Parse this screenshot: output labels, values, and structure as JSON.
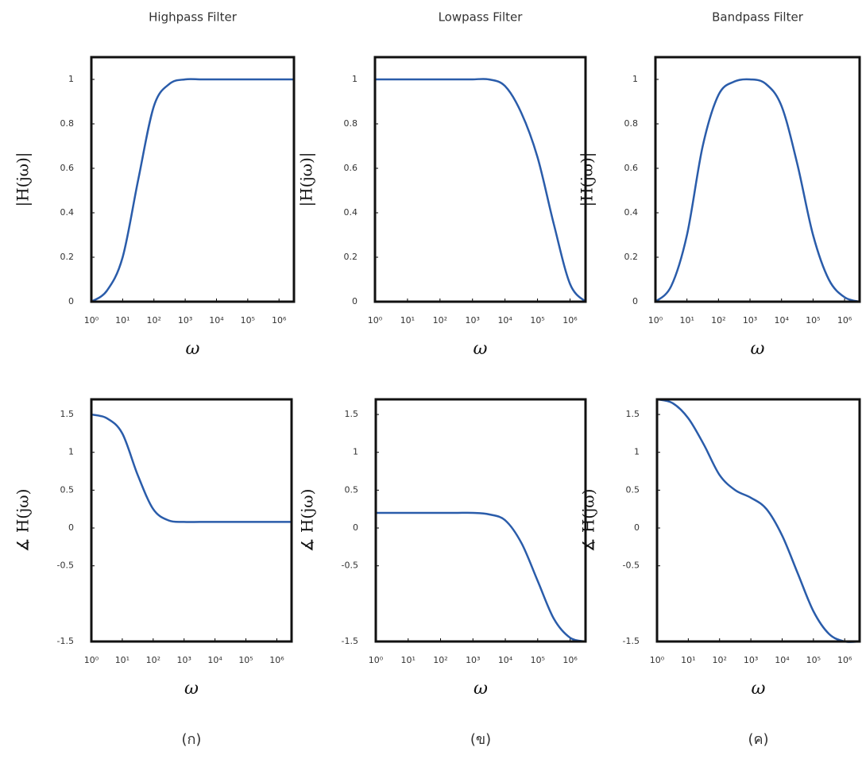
{
  "chart_data": [
    {
      "type": "line",
      "title": "Highpass Filter",
      "ylabel": "|H(jω)|",
      "xlabel": "ω",
      "log_x": true,
      "x": [
        1,
        3.16,
        10,
        31.6,
        100,
        316,
        1000,
        3160,
        10000,
        31600,
        100000,
        316000,
        1000000,
        3000000
      ],
      "series": [
        {
          "color": "#2a5caa",
          "values": [
            0,
            0.05,
            0.2,
            0.55,
            0.88,
            0.98,
            1,
            1,
            1,
            1,
            1,
            1,
            1,
            1
          ]
        }
      ],
      "xlim": [
        1,
        3000000
      ],
      "xticks": [
        {
          "value": 1,
          "label": "10⁰"
        },
        {
          "value": 10,
          "label": "10¹"
        },
        {
          "value": 100,
          "label": "10²"
        },
        {
          "value": 1000,
          "label": "10³"
        },
        {
          "value": 10000,
          "label": "10⁴"
        },
        {
          "value": 100000,
          "label": "10⁵"
        },
        {
          "value": 1000000,
          "label": "10⁶"
        }
      ],
      "ylim": [
        0,
        1.1
      ],
      "yticks": [
        0,
        0.2,
        0.4,
        0.6,
        0.8,
        1
      ]
    },
    {
      "type": "line",
      "title": "Lowpass Filter",
      "ylabel": "|H(jω)|",
      "xlabel": "ω",
      "log_x": true,
      "x": [
        1,
        3.16,
        10,
        31.6,
        100,
        316,
        1000,
        3160,
        10000,
        31600,
        100000,
        316000,
        1000000,
        3000000
      ],
      "series": [
        {
          "color": "#2a5caa",
          "values": [
            1,
            1,
            1,
            1,
            1,
            1,
            1,
            1,
            0.97,
            0.85,
            0.65,
            0.35,
            0.08,
            0
          ]
        }
      ],
      "xlim": [
        1,
        3000000
      ],
      "xticks": [
        {
          "value": 1,
          "label": "10⁰"
        },
        {
          "value": 10,
          "label": "10¹"
        },
        {
          "value": 100,
          "label": "10²"
        },
        {
          "value": 1000,
          "label": "10³"
        },
        {
          "value": 10000,
          "label": "10⁴"
        },
        {
          "value": 100000,
          "label": "10⁵"
        },
        {
          "value": 1000000,
          "label": "10⁶"
        }
      ],
      "ylim": [
        0,
        1.1
      ],
      "yticks": [
        0,
        0.2,
        0.4,
        0.6,
        0.8,
        1
      ]
    },
    {
      "type": "line",
      "title": "Bandpass Filter",
      "ylabel": "|H(jω)|",
      "xlabel": "ω",
      "log_x": true,
      "x": [
        1,
        3.16,
        10,
        31.6,
        100,
        316,
        1000,
        3160,
        10000,
        31600,
        100000,
        316000,
        1000000,
        3000000
      ],
      "series": [
        {
          "color": "#2a5caa",
          "values": [
            0,
            0.07,
            0.3,
            0.7,
            0.93,
            0.99,
            1,
            0.98,
            0.88,
            0.62,
            0.3,
            0.1,
            0.02,
            0
          ]
        }
      ],
      "xlim": [
        1,
        3000000
      ],
      "xticks": [
        {
          "value": 1,
          "label": "10⁰"
        },
        {
          "value": 10,
          "label": "10¹"
        },
        {
          "value": 100,
          "label": "10²"
        },
        {
          "value": 1000,
          "label": "10³"
        },
        {
          "value": 10000,
          "label": "10⁴"
        },
        {
          "value": 100000,
          "label": "10⁵"
        },
        {
          "value": 1000000,
          "label": "10⁶"
        }
      ],
      "ylim": [
        0,
        1.1
      ],
      "yticks": [
        0,
        0.2,
        0.4,
        0.6,
        0.8,
        1
      ]
    },
    {
      "type": "line",
      "ylabel": "∡ H(jω)",
      "xlabel": "ω",
      "caption": "(ก)",
      "log_x": true,
      "x": [
        1,
        3.16,
        10,
        31.6,
        100,
        316,
        1000,
        3160,
        10000,
        31600,
        100000,
        316000,
        1000000,
        3000000
      ],
      "series": [
        {
          "color": "#2a5caa",
          "values": [
            1.5,
            1.45,
            1.25,
            0.7,
            0.25,
            0.1,
            0.08,
            0.08,
            0.08,
            0.08,
            0.08,
            0.08,
            0.08,
            0.08
          ]
        }
      ],
      "xlim": [
        1,
        3000000
      ],
      "xticks": [
        {
          "value": 1,
          "label": "10⁰"
        },
        {
          "value": 10,
          "label": "10¹"
        },
        {
          "value": 100,
          "label": "10²"
        },
        {
          "value": 1000,
          "label": "10³"
        },
        {
          "value": 10000,
          "label": "10⁴"
        },
        {
          "value": 100000,
          "label": "10⁵"
        },
        {
          "value": 1000000,
          "label": "10⁶"
        }
      ],
      "ylim": [
        -1.5,
        1.7
      ],
      "yticks": [
        -1.5,
        -0.5,
        0,
        0.5,
        1,
        1.5
      ]
    },
    {
      "type": "line",
      "ylabel": "∡ H(jω)",
      "xlabel": "ω",
      "caption": "(ข)",
      "log_x": true,
      "x": [
        1,
        3.16,
        10,
        31.6,
        100,
        316,
        1000,
        3160,
        10000,
        31600,
        100000,
        316000,
        1000000,
        3000000
      ],
      "series": [
        {
          "color": "#2a5caa",
          "values": [
            0.2,
            0.2,
            0.2,
            0.2,
            0.2,
            0.2,
            0.2,
            0.18,
            0.1,
            -0.2,
            -0.7,
            -1.2,
            -1.45,
            -1.5
          ]
        }
      ],
      "xlim": [
        1,
        3000000
      ],
      "xticks": [
        {
          "value": 1,
          "label": "10⁰"
        },
        {
          "value": 10,
          "label": "10¹"
        },
        {
          "value": 100,
          "label": "10²"
        },
        {
          "value": 1000,
          "label": "10³"
        },
        {
          "value": 10000,
          "label": "10⁴"
        },
        {
          "value": 100000,
          "label": "10⁵"
        },
        {
          "value": 1000000,
          "label": "10⁶"
        }
      ],
      "ylim": [
        -1.5,
        1.7
      ],
      "yticks": [
        -1.5,
        -0.5,
        0,
        0.5,
        1,
        1.5
      ]
    },
    {
      "type": "line",
      "ylabel": "∡ H(jω)",
      "xlabel": "ω",
      "caption": "(ค)",
      "log_x": true,
      "x": [
        1,
        3.16,
        10,
        31.6,
        100,
        316,
        1000,
        3160,
        10000,
        31600,
        100000,
        316000,
        1000000,
        3000000
      ],
      "series": [
        {
          "color": "#2a5caa",
          "values": [
            1.7,
            1.65,
            1.45,
            1.1,
            0.7,
            0.5,
            0.4,
            0.25,
            -0.1,
            -0.6,
            -1.1,
            -1.4,
            -1.5,
            -1.5
          ]
        }
      ],
      "xlim": [
        1,
        3000000
      ],
      "xticks": [
        {
          "value": 1,
          "label": "10⁰"
        },
        {
          "value": 10,
          "label": "10¹"
        },
        {
          "value": 100,
          "label": "10²"
        },
        {
          "value": 1000,
          "label": "10³"
        },
        {
          "value": 10000,
          "label": "10⁴"
        },
        {
          "value": 100000,
          "label": "10⁵"
        },
        {
          "value": 1000000,
          "label": "10⁶"
        }
      ],
      "ylim": [
        -1.5,
        1.7
      ],
      "yticks": [
        -1.5,
        -0.5,
        0,
        0.5,
        1,
        1.5
      ]
    }
  ]
}
